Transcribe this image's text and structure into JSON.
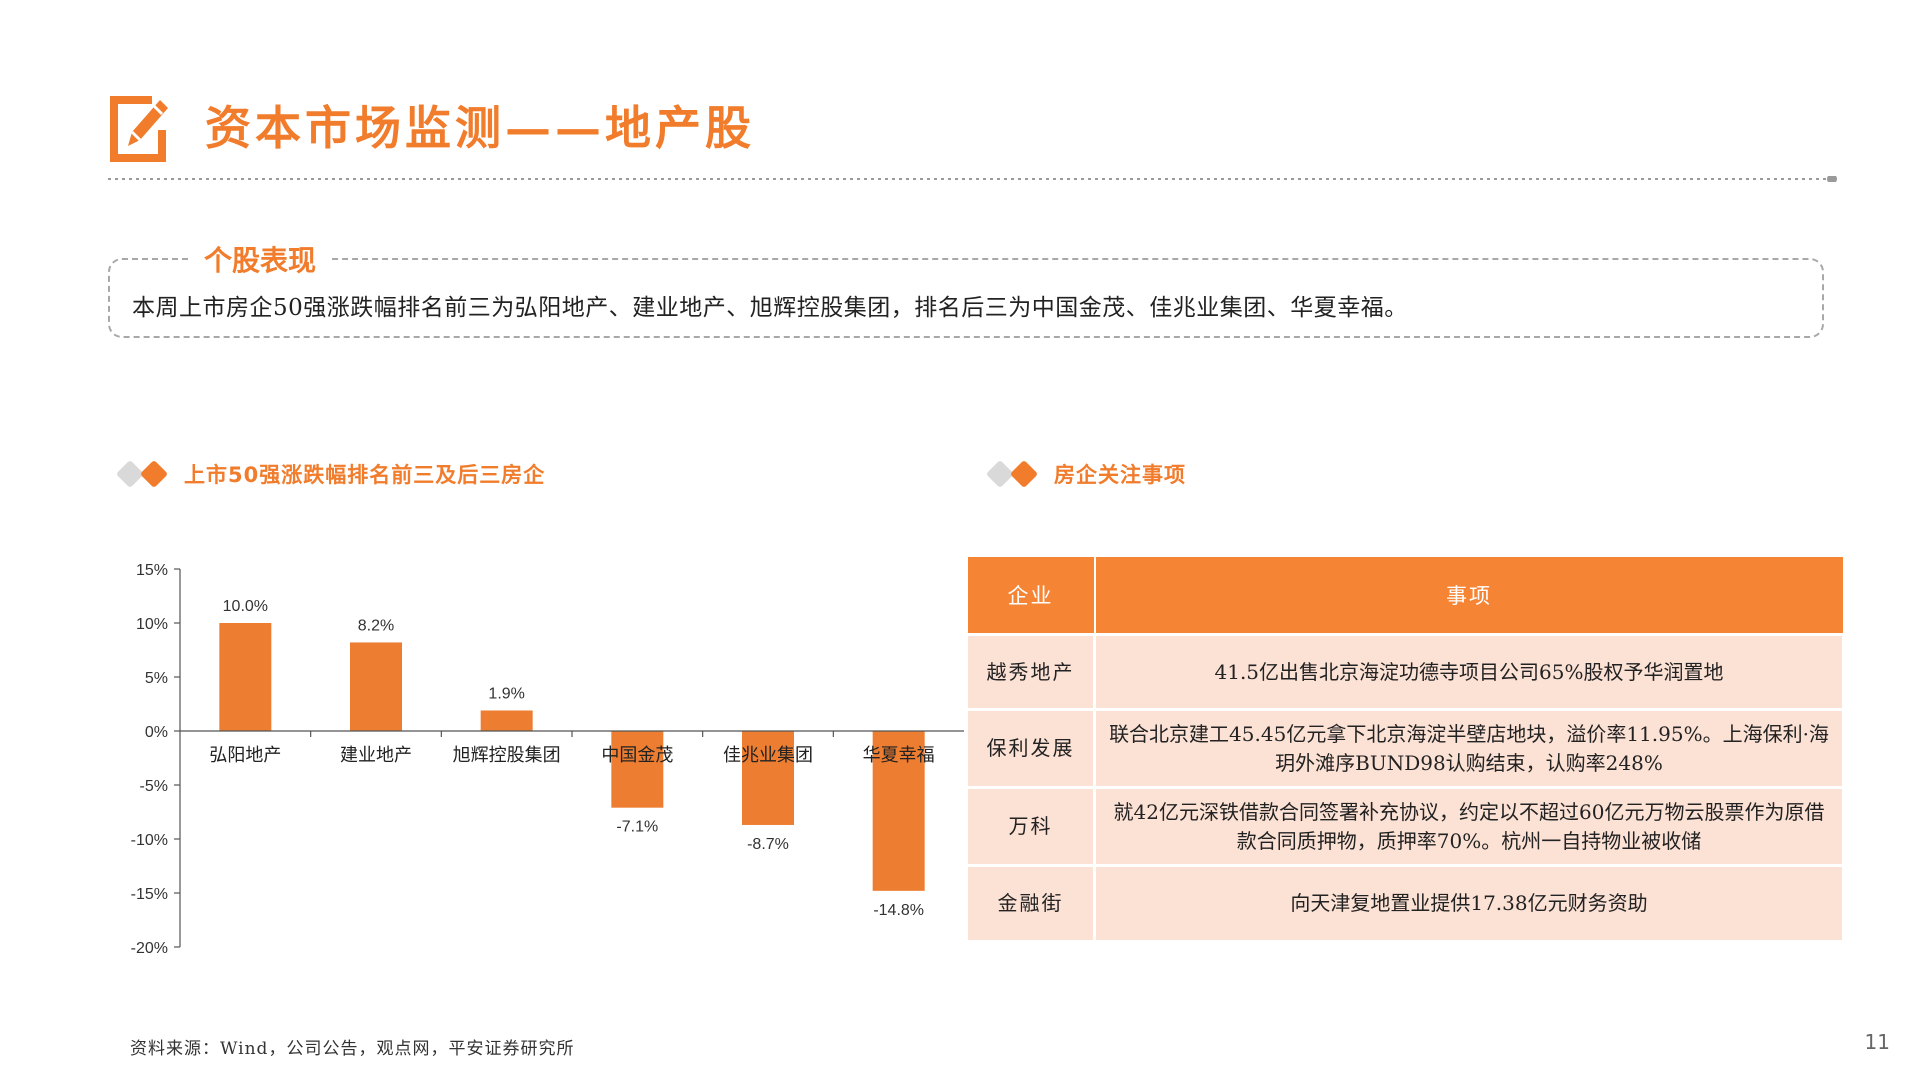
{
  "header": {
    "title": "资本市场监测——地产股"
  },
  "summary": {
    "label": "个股表现",
    "text": "本周上市房企50强涨跌幅排名前三为弘阳地产、建业地产、旭辉控股集团，排名后三为中国金茂、佳兆业集团、华夏幸福。"
  },
  "left_section": {
    "title": "上市50强涨跌幅排名前三及后三房企"
  },
  "right_section": {
    "title": "房企关注事项"
  },
  "colors": {
    "accent": "#f07c2c",
    "bar": "#ed7d31",
    "table_header": "#f58535",
    "table_cell": "#fce1d5"
  },
  "chart_data": {
    "type": "bar",
    "categories": [
      "弘阳地产",
      "建业地产",
      "旭辉控股集团",
      "中国金茂",
      "佳兆业集团",
      "华夏幸福"
    ],
    "values": [
      10.0,
      8.2,
      1.9,
      -7.1,
      -8.7,
      -14.8
    ],
    "value_labels": [
      "10.0%",
      "8.2%",
      "1.9%",
      "-7.1%",
      "-8.7%",
      "-14.8%"
    ],
    "yticks": [
      15,
      10,
      5,
      0,
      -5,
      -10,
      -15,
      -20
    ],
    "ytick_labels": [
      "15%",
      "10%",
      "5%",
      "0%",
      "-5%",
      "-10%",
      "-15%",
      "-20%"
    ],
    "ylim": [
      -20,
      15
    ],
    "grid": false,
    "legend": "none"
  },
  "events_table": {
    "headers": [
      "企业",
      "事项"
    ],
    "rows": [
      {
        "company": "越秀地产",
        "event": "41.5亿出售北京海淀功德寺项目公司65%股权予华润置地"
      },
      {
        "company": "保利发展",
        "event": "联合北京建工45.45亿元拿下北京海淀半壁店地块，溢价率11.95%。上海保利·海玥外滩序BUND98认购结束，认购率248%"
      },
      {
        "company": "万科",
        "event": "就42亿元深铁借款合同签署补充协议，约定以不超过60亿元万物云股票作为原借款合同质押物，质押率70%。杭州一自持物业被收储"
      },
      {
        "company": "金融街",
        "event": "向天津复地置业提供17.38亿元财务资助"
      }
    ]
  },
  "footer": {
    "source": "资料来源：Wind，公司公告，观点网，平安证券研究所",
    "page_number": "11"
  }
}
